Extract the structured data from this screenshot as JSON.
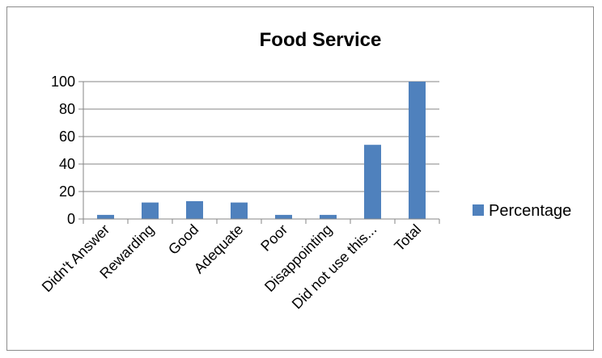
{
  "chart_data": {
    "type": "bar",
    "title": "Food Service",
    "xlabel": "",
    "ylabel": "",
    "categories": [
      "Didn't Answer",
      "Rewarding",
      "Good",
      "Adequate",
      "Poor",
      "Disappointing",
      "Did not use this...",
      "Total"
    ],
    "series": [
      {
        "name": "Percentage",
        "values": [
          3,
          12,
          13,
          12,
          3,
          3,
          54,
          100
        ]
      }
    ],
    "ylim": [
      0,
      100
    ],
    "yticks": [
      "0",
      "20",
      "40",
      "60",
      "80",
      "100"
    ],
    "grid": true,
    "legend": "right",
    "colors": {
      "bar": "#4f81bd",
      "grid": "#868686",
      "axis": "#868686",
      "frame": "#8c8c8c"
    }
  }
}
